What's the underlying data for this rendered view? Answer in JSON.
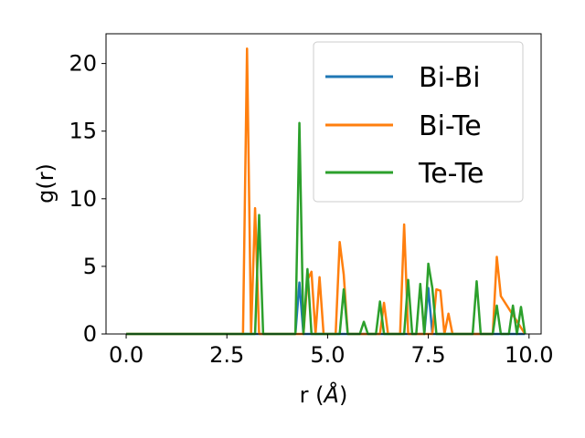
{
  "chart_data": {
    "type": "line",
    "xlabel_base": "r (",
    "xlabel_unit": "Å",
    "xlabel_end": ")",
    "ylabel": "g(r)",
    "xlim": [
      -0.5,
      10.3
    ],
    "ylim": [
      0,
      22.2
    ],
    "xticks": [
      0.0,
      2.5,
      5.0,
      7.5,
      10.0
    ],
    "xtick_labels": [
      "0.0",
      "2.5",
      "5.0",
      "7.5",
      "10.0"
    ],
    "yticks": [
      0,
      5,
      10,
      15,
      20
    ],
    "ytick_labels": [
      "0",
      "5",
      "10",
      "15",
      "20"
    ],
    "grid": false,
    "legend_position": "top-right",
    "series": [
      {
        "name": "Bi-Bi",
        "color": "#1f77b4",
        "x": [
          0,
          4.2,
          4.3,
          4.4,
          7.4,
          7.5,
          7.6,
          9.9
        ],
        "y": [
          0,
          0,
          3.8,
          0,
          0,
          3.4,
          0,
          0
        ]
      },
      {
        "name": "Bi-Te",
        "color": "#ff7f0e",
        "x": [
          0,
          2.9,
          3.0,
          3.1,
          3.2,
          3.3,
          4.4,
          4.5,
          4.6,
          4.7,
          4.8,
          4.9,
          5.2,
          5.3,
          5.4,
          5.5,
          6.3,
          6.4,
          6.5,
          6.8,
          6.9,
          7.0,
          7.6,
          7.7,
          7.8,
          7.9,
          8.0,
          8.1,
          8.2,
          9.1,
          9.2,
          9.3,
          9.9
        ],
        "y": [
          0,
          0,
          21.1,
          0,
          9.3,
          0,
          0,
          4.0,
          4.6,
          0,
          4.2,
          0,
          0,
          6.8,
          4.4,
          0,
          0,
          2.3,
          0,
          0,
          8.1,
          0,
          0,
          3.3,
          3.2,
          0,
          1.5,
          0,
          0,
          0,
          5.7,
          2.8,
          0
        ]
      },
      {
        "name": "Te-Te",
        "color": "#2ca02c",
        "x": [
          0,
          3.2,
          3.3,
          3.4,
          4.2,
          4.3,
          4.4,
          4.5,
          4.6,
          5.3,
          5.4,
          5.5,
          5.8,
          5.9,
          6.0,
          6.2,
          6.3,
          6.4,
          6.9,
          7.0,
          7.1,
          7.2,
          7.3,
          7.4,
          7.5,
          7.6,
          7.7,
          7.8,
          8.6,
          8.7,
          8.8,
          9.1,
          9.2,
          9.3,
          9.4,
          9.5,
          9.6,
          9.7,
          9.8,
          9.9
        ],
        "y": [
          0,
          0,
          8.8,
          0,
          0,
          15.6,
          0,
          4.8,
          0,
          0,
          3.3,
          0,
          0,
          0.9,
          0,
          0,
          2.4,
          0,
          0,
          4.0,
          0,
          0,
          3.7,
          0,
          5.2,
          3.4,
          0,
          0,
          0,
          3.9,
          0,
          0,
          2.1,
          0,
          0,
          0,
          2.1,
          0,
          2.0,
          0
        ]
      }
    ]
  }
}
